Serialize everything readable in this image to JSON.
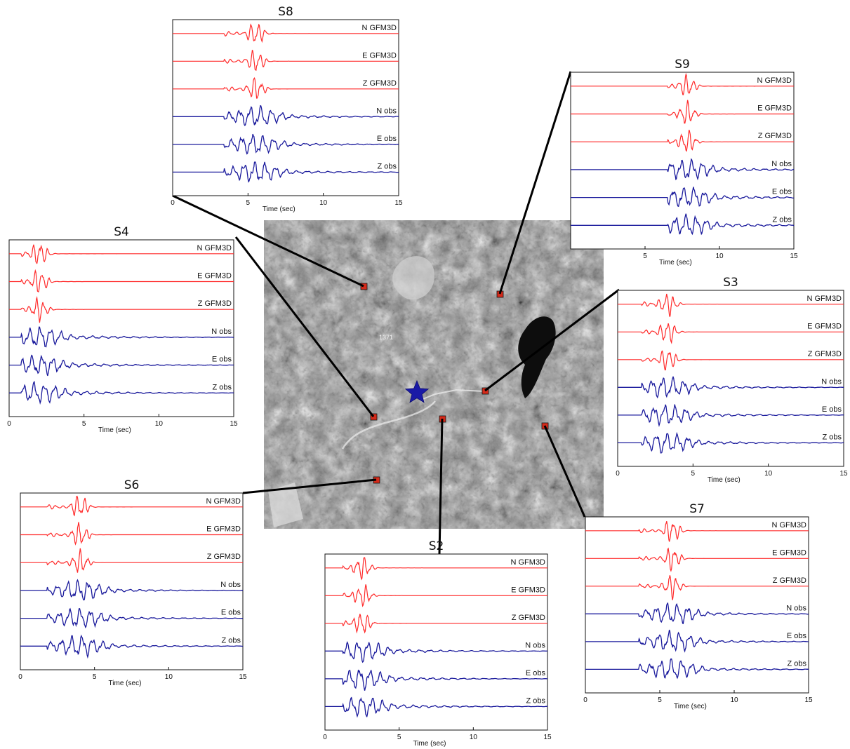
{
  "figure": {
    "map": {
      "peak_label": "1371",
      "epicenter_icon": "star-icon",
      "station_marker_icon": "square-marker-icon",
      "colors": {
        "epicenter": "#1a1aa6",
        "station_marker": "#d42a1a"
      }
    },
    "colors": {
      "synthetic": "#ff2a2a",
      "observed": "#1a1a9c"
    }
  },
  "chart_data": [
    {
      "type": "line",
      "title": "S8",
      "xlabel": "Time (sec)",
      "xlim": [
        0,
        15
      ],
      "x_ticks": [
        "0",
        "5",
        "10",
        "15"
      ],
      "traces": [
        "N GFM3D",
        "E GFM3D",
        "Z GFM3D",
        "N obs",
        "E obs",
        "Z obs"
      ]
    },
    {
      "type": "line",
      "title": "S9",
      "xlabel": "Time (sec)",
      "xlim": [
        0,
        15
      ],
      "x_ticks": [
        "5",
        "10",
        "15"
      ],
      "traces": [
        "N GFM3D",
        "E GFM3D",
        "Z GFM3D",
        "N obs",
        "E obs",
        "Z obs"
      ]
    },
    {
      "type": "line",
      "title": "S4",
      "xlabel": "Time (sec)",
      "xlim": [
        0,
        15
      ],
      "x_ticks": [
        "0",
        "5",
        "10",
        "15"
      ],
      "traces": [
        "N GFM3D",
        "E GFM3D",
        "Z GFM3D",
        "N obs",
        "E obs",
        "Z obs"
      ]
    },
    {
      "type": "line",
      "title": "S3",
      "xlabel": "Time (sec)",
      "xlim": [
        0,
        15
      ],
      "x_ticks": [
        "0",
        "5",
        "10",
        "15"
      ],
      "traces": [
        "N GFM3D",
        "E GFM3D",
        "Z GFM3D",
        "N obs",
        "E obs",
        "Z obs"
      ]
    },
    {
      "type": "line",
      "title": "S6",
      "xlabel": "Time (sec)",
      "xlim": [
        0,
        15
      ],
      "x_ticks": [
        "0",
        "5",
        "10",
        "15"
      ],
      "traces": [
        "N GFM3D",
        "E GFM3D",
        "Z GFM3D",
        "N obs",
        "E obs",
        "Z obs"
      ]
    },
    {
      "type": "line",
      "title": "S7",
      "xlabel": "Time (sec)",
      "xlim": [
        0,
        15
      ],
      "x_ticks": [
        "0",
        "5",
        "10",
        "15"
      ],
      "traces": [
        "N GFM3D",
        "E GFM3D",
        "Z GFM3D",
        "N obs",
        "E obs",
        "Z obs"
      ]
    },
    {
      "type": "line",
      "title": "S2",
      "xlabel": "Time (sec)",
      "xlim": [
        0,
        15
      ],
      "x_ticks": [
        "0",
        "5",
        "10",
        "15"
      ],
      "traces": [
        "N GFM3D",
        "E GFM3D",
        "Z GFM3D",
        "N obs",
        "E obs",
        "Z obs"
      ]
    }
  ]
}
